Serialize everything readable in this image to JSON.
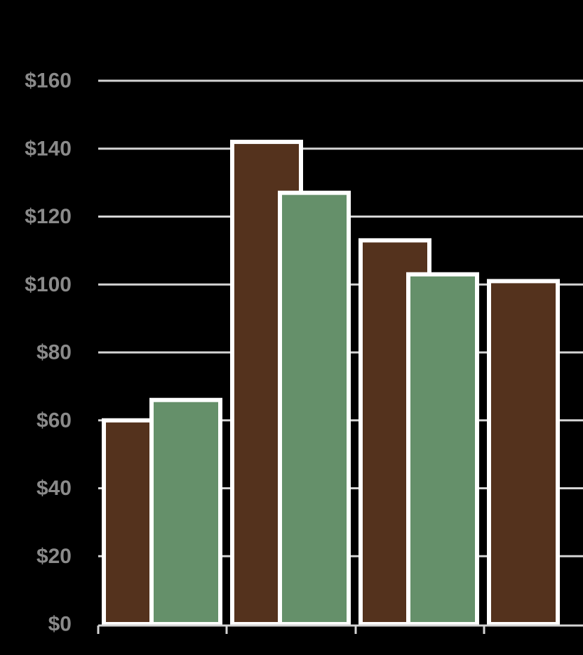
{
  "chart_data": {
    "type": "bar",
    "categories": [
      "",
      "",
      "",
      ""
    ],
    "series": [
      {
        "values": [
          60,
          142,
          113,
          101
        ]
      },
      {
        "values": [
          66,
          127,
          103,
          null
        ]
      }
    ],
    "yticks": [
      "$0",
      "$20",
      "$40",
      "$60",
      "$80",
      "$100",
      "$120",
      "$140",
      "$160"
    ],
    "ylim": [
      0,
      160
    ],
    "grid": true,
    "legend": "none",
    "colors": {
      "background": "#000000",
      "grid": "#d4d4d4",
      "tick_label": "#8a8a8a",
      "bar_outline": "#ffffff",
      "series": [
        "#54321d",
        "#65906a"
      ]
    }
  }
}
